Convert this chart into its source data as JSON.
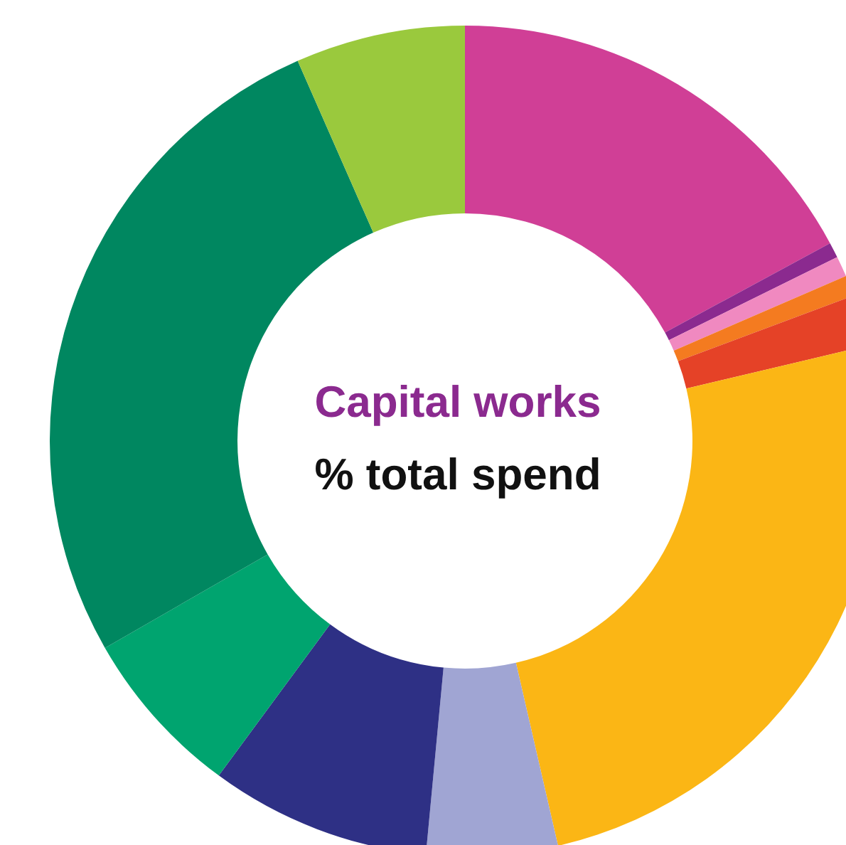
{
  "chart_data": {
    "type": "donut",
    "title": "Capital works",
    "subtitle": "% total spend",
    "categories": [
      null,
      null,
      null,
      null,
      null,
      null,
      null,
      null,
      null,
      null,
      null
    ],
    "values": [
      17.1,
      0.6,
      0.8,
      0.8,
      2,
      25.1,
      5.1,
      8.6,
      6.6,
      26.7,
      6.6
    ],
    "colors": [
      "#d03f96",
      "#8b2a8f",
      "#f089c0",
      "#f47b20",
      "#e54227",
      "#fbb615",
      "#a0a5d3",
      "#2e3085",
      "#00a46f",
      "#008760",
      "#9ac93d"
    ]
  }
}
